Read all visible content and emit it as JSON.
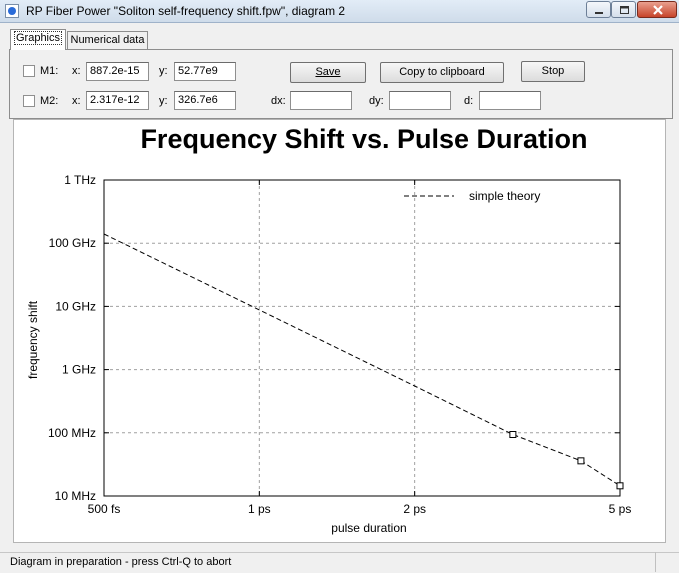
{
  "window": {
    "title": "RP Fiber Power \"Soliton self-frequency shift.fpw\", diagram 2"
  },
  "tabs": [
    {
      "label": "Graphics",
      "active": true
    },
    {
      "label": "Numerical data",
      "active": false
    }
  ],
  "markers": {
    "m1": {
      "label": "M1:",
      "x_label": "x:",
      "x_value": "887.2e-15",
      "y_label": "y:",
      "y_value": "52.77e9",
      "checked": false
    },
    "m2": {
      "label": "M2:",
      "x_label": "x:",
      "x_value": "2.317e-12",
      "y_label": "y:",
      "y_value": "326.7e6",
      "checked": false
    }
  },
  "buttons": {
    "save": "Save",
    "copy": "Copy to clipboard",
    "stop": "Stop"
  },
  "deltas": {
    "dx_label": "dx:",
    "dx_value": "",
    "dy_label": "dy:",
    "dy_value": "",
    "d_label": "d:",
    "d_value": ""
  },
  "status": {
    "text": "Diagram in preparation - press Ctrl-Q to abort"
  },
  "chart_data": {
    "type": "line",
    "title": "Frequency Shift vs. Pulse Duration",
    "xlabel": "pulse duration",
    "ylabel": "frequency shift",
    "x_scale": "log",
    "y_scale": "log",
    "xlim": [
      5e-13,
      5e-12
    ],
    "ylim": [
      10000000.0,
      1000000000000.0
    ],
    "x_ticks": [
      {
        "value": 5e-13,
        "label": "500 fs"
      },
      {
        "value": 1e-12,
        "label": "1 ps"
      },
      {
        "value": 2e-12,
        "label": "2 ps"
      },
      {
        "value": 5e-12,
        "label": "5 ps"
      }
    ],
    "y_ticks": [
      {
        "value": 1000000000000.0,
        "label": "1 THz"
      },
      {
        "value": 100000000000.0,
        "label": "100 GHz"
      },
      {
        "value": 10000000000.0,
        "label": "10 GHz"
      },
      {
        "value": 1000000000.0,
        "label": "1 GHz"
      },
      {
        "value": 100000000.0,
        "label": "100 MHz"
      },
      {
        "value": 10000000.0,
        "label": "10 MHz"
      }
    ],
    "grid": true,
    "legend_position": "top-right",
    "series": [
      {
        "name": "simple theory",
        "style": "dashed",
        "color": "#000000",
        "x": [
          5e-13,
          1e-12,
          2e-12,
          3.1e-12,
          4.2e-12,
          5e-12
        ],
        "y": [
          140000000000.0,
          8800000000.0,
          550000000.0,
          94000000.0,
          36000000.0,
          14500000.0
        ]
      }
    ],
    "point_markers": [
      {
        "x": 3.1e-12,
        "y": 94000000.0
      },
      {
        "x": 4.2e-12,
        "y": 36000000.0
      },
      {
        "x": 5e-12,
        "y": 14500000.0
      }
    ]
  }
}
